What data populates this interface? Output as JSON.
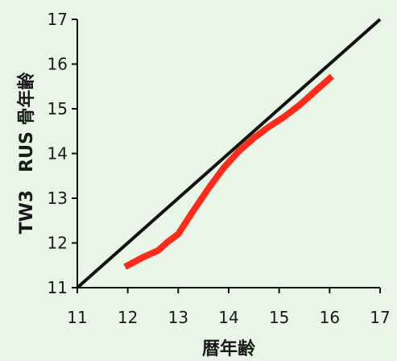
{
  "chart_data": {
    "type": "line",
    "title": "",
    "xlabel": "暦年齢",
    "ylabel": "TW3　RUS 骨年齢",
    "xlim": [
      11,
      17
    ],
    "ylim": [
      11,
      17
    ],
    "x_ticks": [
      "11",
      "12",
      "13",
      "14",
      "15",
      "16",
      "17"
    ],
    "y_ticks": [
      "11",
      "12",
      "13",
      "14",
      "15",
      "16",
      "17"
    ],
    "grid": false,
    "series": [
      {
        "color": "#111111",
        "x": [
          11,
          17
        ],
        "y": [
          11,
          17
        ]
      },
      {
        "color": "#ff2a1a",
        "x": [
          12.0,
          12.3,
          12.6,
          12.8,
          13.0,
          13.3,
          13.6,
          13.9,
          14.2,
          14.5,
          14.8,
          15.1,
          15.4,
          15.7,
          16.0
        ],
        "y": [
          11.5,
          11.68,
          11.83,
          12.03,
          12.2,
          12.72,
          13.22,
          13.68,
          14.05,
          14.35,
          14.6,
          14.82,
          15.08,
          15.38,
          15.68
        ]
      }
    ]
  }
}
